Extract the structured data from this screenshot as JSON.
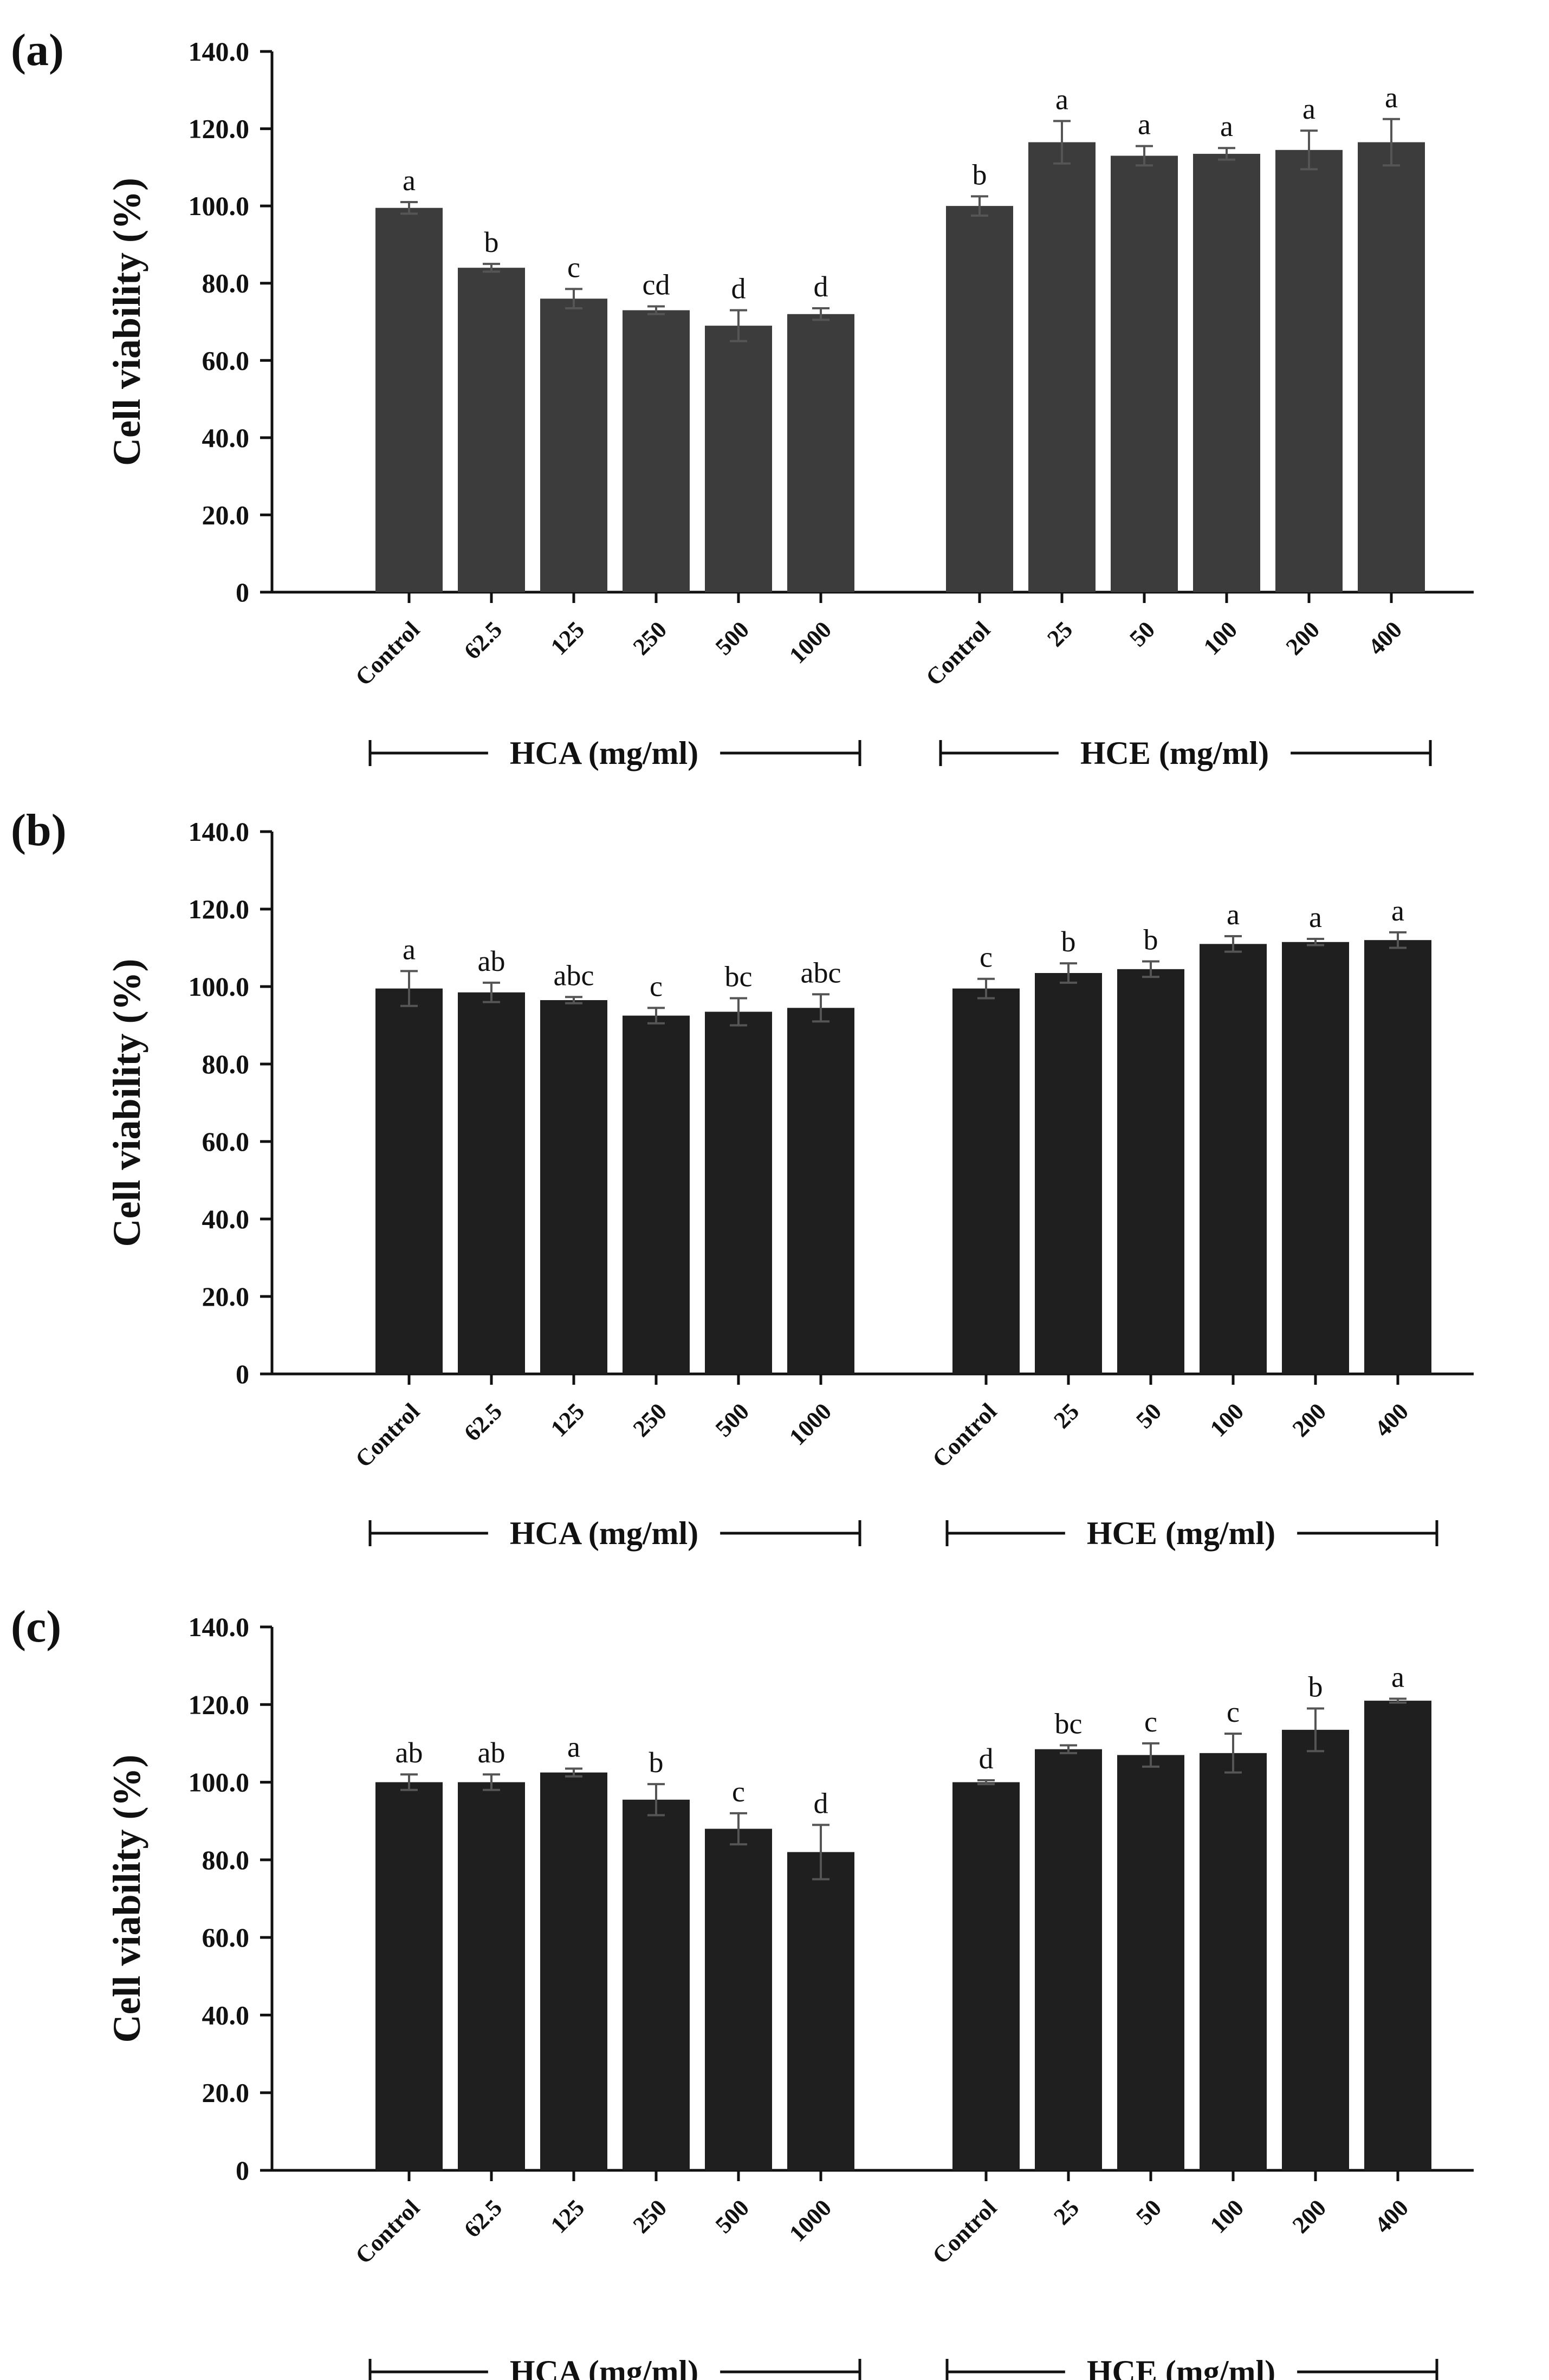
{
  "colors": {
    "bar_a": "#3c3c3c",
    "bar_bc": "#1f1f1f",
    "ink": "#111111",
    "error_bar": "#555555"
  },
  "chart_data": [
    {
      "panel_label": "(a)",
      "type": "bar",
      "ylabel": "Cell viability (%)",
      "ylim": [
        0,
        140
      ],
      "yticks": [
        "0",
        "20.0",
        "40.0",
        "60.0",
        "80.0",
        "100.0",
        "120.0",
        "140.0"
      ],
      "groups": [
        {
          "name": "HCA (mg/ml)",
          "categories": [
            "Control",
            "62.5",
            "125",
            "250",
            "500",
            "1000"
          ],
          "values": [
            99.5,
            84.0,
            76.0,
            73.0,
            69.0,
            72.0
          ],
          "errors": [
            1.5,
            1.0,
            2.5,
            1.0,
            4.0,
            1.5
          ],
          "letters": [
            "a",
            "b",
            "c",
            "cd",
            "d",
            "d"
          ]
        },
        {
          "name": "HCE (mg/ml)",
          "categories": [
            "Control",
            "25",
            "50",
            "100",
            "200",
            "400"
          ],
          "values": [
            100.0,
            116.5,
            113.0,
            113.5,
            114.5,
            116.5
          ],
          "errors": [
            2.5,
            5.5,
            2.5,
            1.5,
            5.0,
            6.0
          ],
          "letters": [
            "b",
            "a",
            "a",
            "a",
            "a",
            "a"
          ]
        }
      ]
    },
    {
      "panel_label": "(b)",
      "type": "bar",
      "ylabel": "Cell viability (%)",
      "ylim": [
        0,
        140
      ],
      "yticks": [
        "0",
        "20.0",
        "40.0",
        "60.0",
        "80.0",
        "100.0",
        "120.0",
        "140.0"
      ],
      "groups": [
        {
          "name": "HCA (mg/ml)",
          "categories": [
            "Control",
            "62.5",
            "125",
            "250",
            "500",
            "1000"
          ],
          "values": [
            99.5,
            98.5,
            96.5,
            92.5,
            93.5,
            94.5
          ],
          "errors": [
            4.5,
            2.5,
            0.8,
            2.0,
            3.5,
            3.5
          ],
          "letters": [
            "a",
            "ab",
            "abc",
            "c",
            "bc",
            "abc"
          ]
        },
        {
          "name": "HCE (mg/ml)",
          "categories": [
            "Control",
            "25",
            "50",
            "100",
            "200",
            "400"
          ],
          "values": [
            99.5,
            103.5,
            104.5,
            111.0,
            111.5,
            112.0
          ],
          "errors": [
            2.5,
            2.5,
            2.0,
            2.0,
            0.8,
            2.0
          ],
          "letters": [
            "c",
            "b",
            "b",
            "a",
            "a",
            "a"
          ]
        }
      ]
    },
    {
      "panel_label": "(c)",
      "type": "bar",
      "ylabel": "Cell viability (%)",
      "ylim": [
        0,
        140
      ],
      "yticks": [
        "0",
        "20.0",
        "40.0",
        "60.0",
        "80.0",
        "100.0",
        "120.0",
        "140.0"
      ],
      "groups": [
        {
          "name": "HCA (mg/ml)",
          "categories": [
            "Control",
            "62.5",
            "125",
            "250",
            "500",
            "1000"
          ],
          "values": [
            100.0,
            100.0,
            102.5,
            95.5,
            88.0,
            82.0
          ],
          "errors": [
            2.0,
            2.0,
            1.0,
            4.0,
            4.0,
            7.0
          ],
          "letters": [
            "ab",
            "ab",
            "a",
            "b",
            "c",
            "d"
          ]
        },
        {
          "name": "HCE (mg/ml)",
          "categories": [
            "Control",
            "25",
            "50",
            "100",
            "200",
            "400"
          ],
          "values": [
            100.0,
            108.5,
            107.0,
            107.5,
            113.5,
            121.0
          ],
          "errors": [
            0.5,
            1.0,
            3.0,
            5.0,
            5.5,
            0.5
          ],
          "letters": [
            "d",
            "bc",
            "c",
            "c",
            "b",
            "a"
          ]
        }
      ]
    }
  ]
}
